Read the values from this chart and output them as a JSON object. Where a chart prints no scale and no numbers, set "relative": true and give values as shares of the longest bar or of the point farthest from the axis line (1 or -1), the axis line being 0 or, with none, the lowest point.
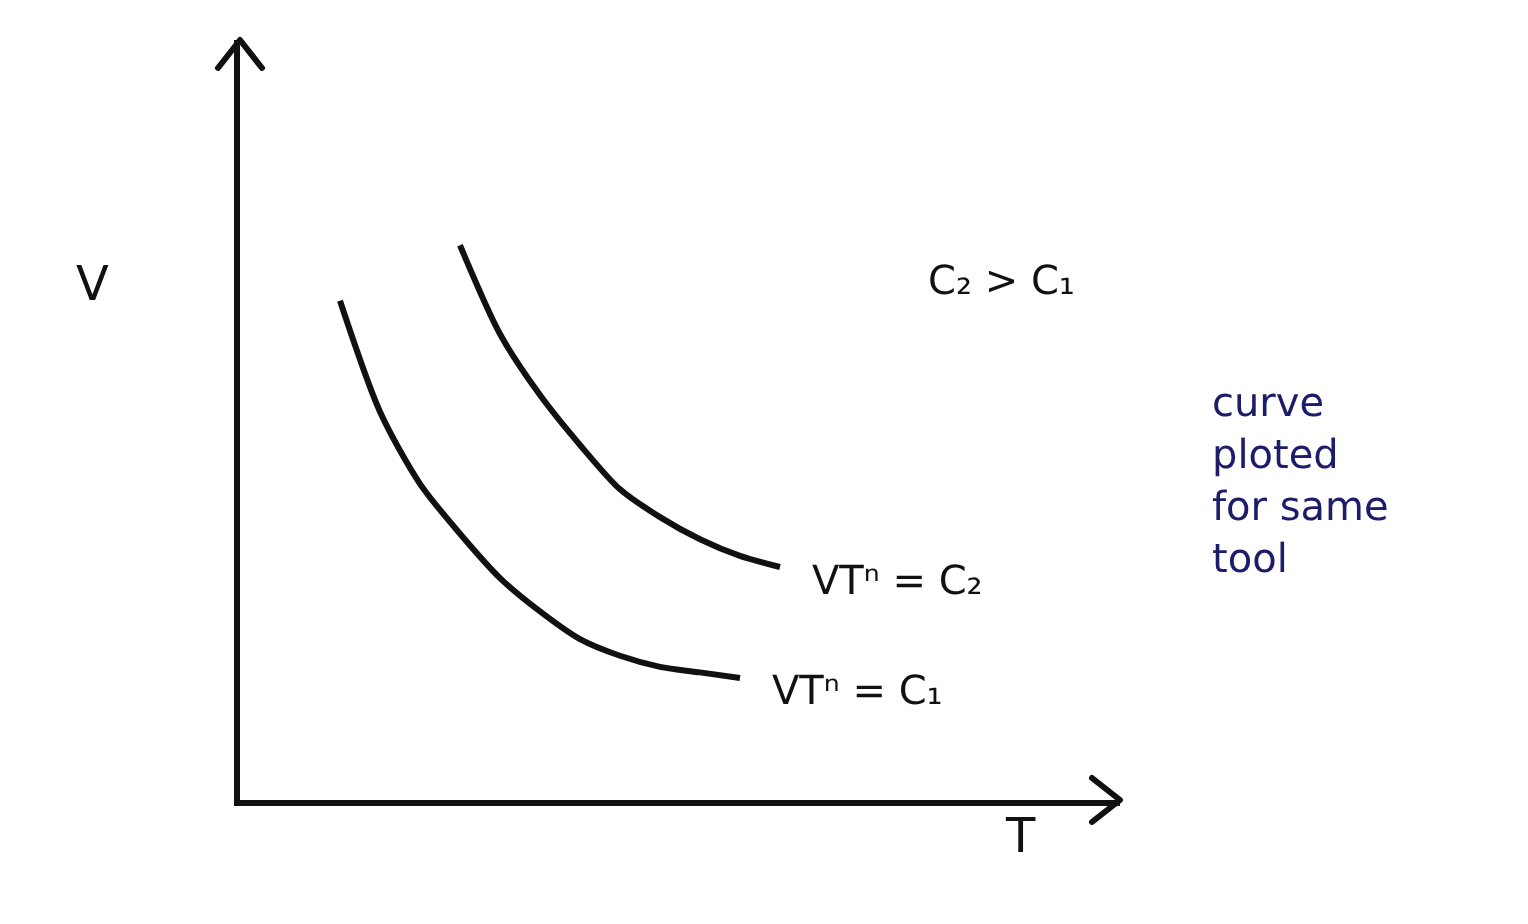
{
  "chart_data": {
    "type": "line",
    "relative": true,
    "xlabel": "T",
    "ylabel": "V",
    "categories": [
      null,
      null,
      null,
      null,
      null,
      null,
      null,
      null,
      null,
      null,
      null,
      null,
      null,
      null,
      null,
      null,
      null,
      null,
      null,
      null,
      null,
      null
    ],
    "series": [
      {
        "name": "VTⁿ = C₂",
        "color": "#111111",
        "values": [
          null,
          null,
          null,
          null,
          null,
          1,
          0.84,
          0.73,
          0.64,
          0.56,
          0.51,
          0.47,
          0.44,
          0.42,
          null,
          null,
          null,
          null,
          null,
          null,
          null,
          null
        ]
      },
      {
        "name": "VTⁿ = C₁",
        "color": "#111111",
        "values": [
          null,
          null,
          0.9,
          0.7,
          0.57,
          0.48,
          0.4,
          0.34,
          0.29,
          0.26,
          0.24,
          0.23,
          0.22,
          null,
          null,
          null,
          null,
          null,
          null,
          null,
          null,
          null
        ]
      }
    ],
    "annotations": [
      "C₂ > C₁",
      "curve\nploted\nfor same\ntool"
    ]
  }
}
